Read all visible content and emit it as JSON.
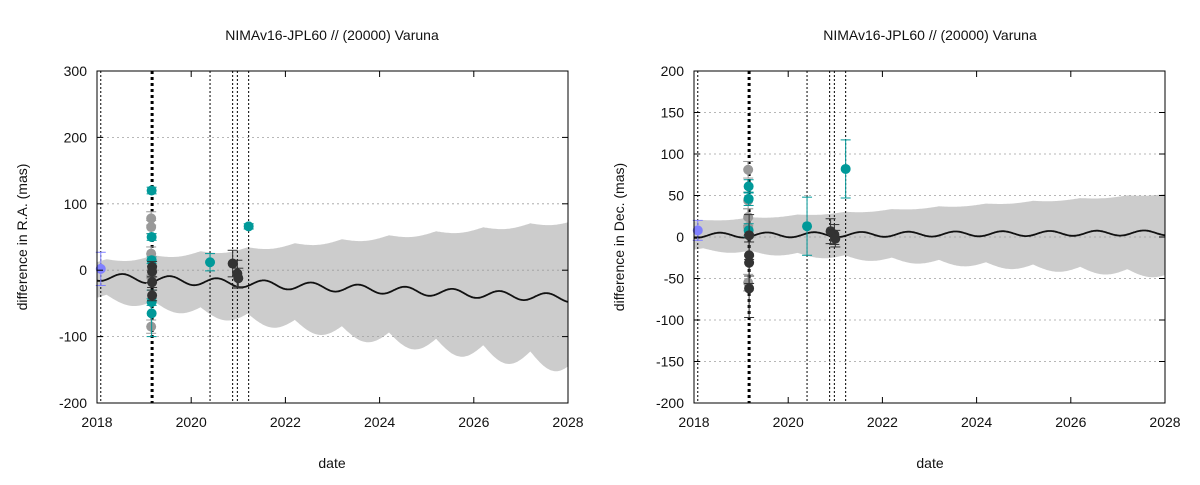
{
  "chart_data": [
    {
      "type": "scatter",
      "title": "NIMAv16-JPL60 // (20000) Varuna",
      "xlabel": "date",
      "ylabel": "difference in R.A. (mas)",
      "xlim": [
        2018,
        2028
      ],
      "ylim": [
        -200,
        300
      ],
      "xticks": [
        2018,
        2020,
        2022,
        2024,
        2026,
        2028
      ],
      "yticks": [
        -200,
        -100,
        0,
        100,
        200,
        300
      ],
      "grid": "horizontal-dotted",
      "vlines_dotted": [
        2018.08,
        2020.4,
        2020.88,
        2020.98,
        2021.22
      ],
      "vline_bold": 2019.17,
      "model_curve": {
        "name": "model difference",
        "offset": -10,
        "slope": -3.2,
        "amplitude": 6,
        "period": 1.0
      },
      "uncertainty_band": {
        "name": "uncertainty",
        "upper_base": 10,
        "upper_growth": 6,
        "lower_base": -35,
        "lower_growth": -9.5,
        "wiggle": 18
      },
      "series": [
        {
          "name": "purple",
          "color": "#8080ff",
          "points": [
            {
              "x": 2018.08,
              "y": 2,
              "err": 25
            }
          ]
        },
        {
          "name": "grey",
          "color": "#999999",
          "points": [
            {
              "x": 2019.15,
              "y": 78,
              "err": 10
            },
            {
              "x": 2019.15,
              "y": 65,
              "err": 10
            },
            {
              "x": 2019.15,
              "y": 25,
              "err": 10
            },
            {
              "x": 2019.15,
              "y": -10,
              "err": 10
            },
            {
              "x": 2019.15,
              "y": -85,
              "err": 10
            }
          ]
        },
        {
          "name": "teal",
          "color": "#009999",
          "points": [
            {
              "x": 2019.16,
              "y": 120,
              "err": 5
            },
            {
              "x": 2019.16,
              "y": 50,
              "err": 5
            },
            {
              "x": 2019.16,
              "y": 15,
              "err": 5
            },
            {
              "x": 2019.16,
              "y": -48,
              "err": 5
            },
            {
              "x": 2019.16,
              "y": -65,
              "err": 35
            },
            {
              "x": 2020.4,
              "y": 12,
              "err": 13
            },
            {
              "x": 2021.22,
              "y": 66,
              "err": 4
            }
          ]
        },
        {
          "name": "dark",
          "color": "#333333",
          "points": [
            {
              "x": 2019.17,
              "y": 5,
              "err": 8
            },
            {
              "x": 2019.17,
              "y": -2,
              "err": 8
            },
            {
              "x": 2019.17,
              "y": -18,
              "err": 8
            },
            {
              "x": 2019.17,
              "y": -38,
              "err": 8
            },
            {
              "x": 2020.88,
              "y": 10,
              "err": 20
            },
            {
              "x": 2020.98,
              "y": -5,
              "err": 20
            },
            {
              "x": 2021.0,
              "y": -12,
              "err": 15
            }
          ]
        }
      ]
    },
    {
      "type": "scatter",
      "title": "NIMAv16-JPL60 // (20000) Varuna",
      "xlabel": "date",
      "ylabel": "difference in Dec. (mas)",
      "xlim": [
        2018,
        2028
      ],
      "ylim": [
        -200,
        200
      ],
      "xticks": [
        2018,
        2020,
        2022,
        2024,
        2026,
        2028
      ],
      "yticks": [
        -200,
        -150,
        -100,
        -50,
        0,
        50,
        100,
        150,
        200
      ],
      "grid": "horizontal-dotted",
      "vlines_dotted": [
        2018.08,
        2020.4,
        2020.88,
        2020.98,
        2021.22
      ],
      "vline_bold": 2019.17,
      "model_curve": {
        "name": "model difference",
        "offset": 2,
        "slope": 0.3,
        "amplitude": 3,
        "period": 1.0
      },
      "uncertainty_band": {
        "name": "uncertainty",
        "upper_base": 18,
        "upper_growth": 3.3,
        "lower_base": -13,
        "lower_growth": -2.8,
        "wiggle": 6
      },
      "series": [
        {
          "name": "purple",
          "color": "#8080ff",
          "points": [
            {
              "x": 2018.08,
              "y": 8,
              "err": 12
            }
          ]
        },
        {
          "name": "grey",
          "color": "#999999",
          "points": [
            {
              "x": 2019.15,
              "y": 81,
              "err": 10
            },
            {
              "x": 2019.15,
              "y": 44,
              "err": 10
            },
            {
              "x": 2019.15,
              "y": 24,
              "err": 10
            },
            {
              "x": 2019.15,
              "y": 12,
              "err": 10
            },
            {
              "x": 2019.15,
              "y": -55,
              "err": 10
            }
          ]
        },
        {
          "name": "teal",
          "color": "#009999",
          "points": [
            {
              "x": 2019.16,
              "y": 61,
              "err": 8
            },
            {
              "x": 2019.16,
              "y": 46,
              "err": 8
            },
            {
              "x": 2019.16,
              "y": 8,
              "err": 8
            },
            {
              "x": 2020.4,
              "y": 13,
              "err": 35
            },
            {
              "x": 2021.22,
              "y": 82,
              "err": 35
            }
          ]
        },
        {
          "name": "dark",
          "color": "#333333",
          "points": [
            {
              "x": 2019.17,
              "y": 2,
              "err": 25
            },
            {
              "x": 2019.17,
              "y": -22,
              "err": 25
            },
            {
              "x": 2019.17,
              "y": -31,
              "err": 25
            },
            {
              "x": 2019.17,
              "y": -62,
              "err": 35
            },
            {
              "x": 2020.9,
              "y": 7,
              "err": 15
            },
            {
              "x": 2020.98,
              "y": 3,
              "err": 12
            },
            {
              "x": 2021.0,
              "y": -2,
              "err": 10
            }
          ]
        }
      ]
    }
  ]
}
